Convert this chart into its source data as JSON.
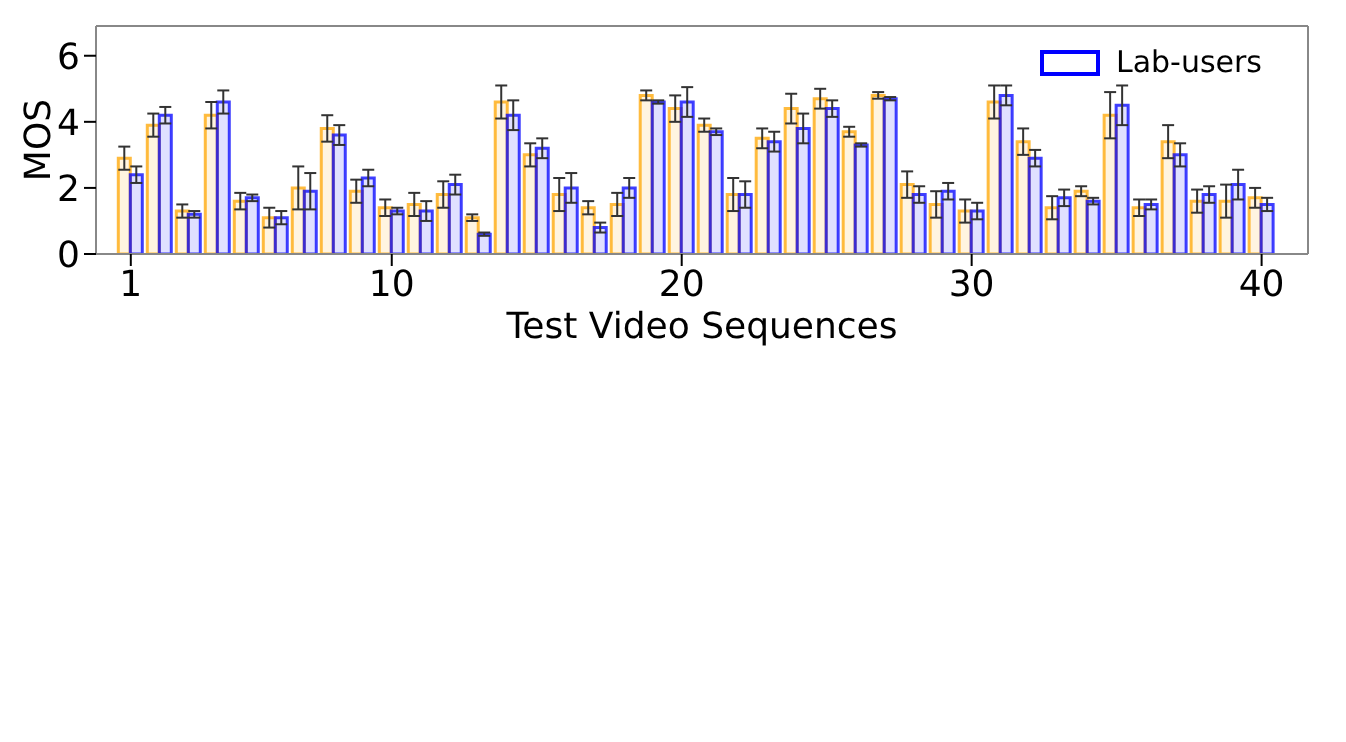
{
  "chart_data": {
    "type": "bar",
    "xlabel": "Test Video Sequences",
    "ylabel": "MOS",
    "x": [
      1,
      2,
      3,
      4,
      5,
      6,
      7,
      8,
      9,
      10,
      11,
      12,
      13,
      14,
      15,
      16,
      17,
      18,
      19,
      20,
      21,
      22,
      23,
      24,
      25,
      26,
      27,
      28,
      29,
      30,
      31,
      32,
      33,
      34,
      35,
      36,
      37,
      38,
      39,
      40
    ],
    "xlim": [
      -0.2,
      41.6
    ],
    "xticks": [
      1,
      10,
      20,
      30,
      40
    ],
    "ylim": [
      0,
      6.9
    ],
    "yticks": [
      0,
      2,
      4,
      6
    ],
    "series": [
      {
        "color": "#ffa500",
        "values": [
          2.9,
          3.9,
          1.3,
          4.2,
          1.6,
          1.1,
          2.0,
          3.8,
          1.9,
          1.4,
          1.5,
          1.8,
          1.1,
          4.6,
          3.0,
          1.8,
          1.4,
          1.5,
          4.8,
          4.4,
          3.9,
          1.8,
          3.5,
          4.4,
          4.7,
          3.7,
          4.8,
          2.1,
          1.5,
          1.3,
          4.6,
          3.4,
          1.4,
          1.9,
          4.2,
          1.4,
          3.4,
          1.6,
          1.6,
          1.7
        ],
        "errors": [
          0.35,
          0.35,
          0.2,
          0.4,
          0.25,
          0.3,
          0.65,
          0.4,
          0.35,
          0.25,
          0.35,
          0.4,
          0.1,
          0.5,
          0.35,
          0.5,
          0.2,
          0.35,
          0.15,
          0.4,
          0.2,
          0.5,
          0.3,
          0.45,
          0.3,
          0.15,
          0.1,
          0.4,
          0.4,
          0.35,
          0.5,
          0.4,
          0.35,
          0.15,
          0.7,
          0.25,
          0.5,
          0.35,
          0.5,
          0.3
        ]
      },
      {
        "name": "Lab-users",
        "color": "#0000ff",
        "values": [
          2.4,
          4.2,
          1.2,
          4.6,
          1.7,
          1.1,
          1.9,
          3.6,
          2.3,
          1.3,
          1.3,
          2.1,
          0.6,
          4.2,
          3.2,
          2.0,
          0.8,
          2.0,
          4.6,
          4.6,
          3.7,
          1.8,
          3.4,
          3.8,
          4.4,
          3.3,
          4.7,
          1.8,
          1.9,
          1.3,
          4.8,
          2.9,
          1.7,
          1.6,
          4.5,
          1.5,
          3.0,
          1.8,
          2.1,
          1.5
        ],
        "errors": [
          0.25,
          0.25,
          0.1,
          0.35,
          0.1,
          0.2,
          0.55,
          0.3,
          0.25,
          0.1,
          0.3,
          0.3,
          0.05,
          0.45,
          0.3,
          0.45,
          0.15,
          0.3,
          0.05,
          0.45,
          0.1,
          0.4,
          0.3,
          0.45,
          0.25,
          0.05,
          0.05,
          0.25,
          0.25,
          0.25,
          0.3,
          0.25,
          0.25,
          0.1,
          0.6,
          0.15,
          0.35,
          0.25,
          0.45,
          0.2
        ]
      }
    ],
    "legend": "top right"
  }
}
